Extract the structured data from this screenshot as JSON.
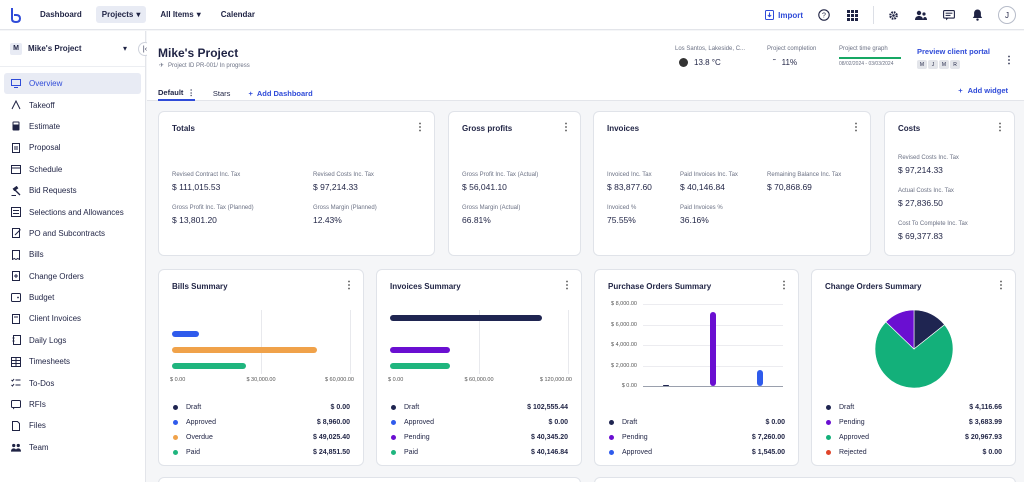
{
  "topnav": {
    "items": [
      {
        "label": "Dashboard"
      },
      {
        "label": "Projects"
      },
      {
        "label": "All Items"
      },
      {
        "label": "Calendar"
      }
    ],
    "import_label": "Import",
    "avatar_initial": "J"
  },
  "sidebar": {
    "project_initial": "M",
    "project_name": "Mike's Project",
    "items": [
      {
        "label": "Overview"
      },
      {
        "label": "Takeoff"
      },
      {
        "label": "Estimate"
      },
      {
        "label": "Proposal"
      },
      {
        "label": "Schedule"
      },
      {
        "label": "Bid Requests"
      },
      {
        "label": "Selections and Allowances"
      },
      {
        "label": "PO and Subcontracts"
      },
      {
        "label": "Bills"
      },
      {
        "label": "Change Orders"
      },
      {
        "label": "Budget"
      },
      {
        "label": "Client Invoices"
      },
      {
        "label": "Daily Logs"
      },
      {
        "label": "Timesheets"
      },
      {
        "label": "To-Dos"
      },
      {
        "label": "RFIs"
      },
      {
        "label": "Files"
      },
      {
        "label": "Team"
      }
    ]
  },
  "header": {
    "title": "Mike's Project",
    "subtitle": "Project ID PR-001/ In progress",
    "location": "Los Santos, Lakeside, C...",
    "temperature": "13.8 °C",
    "completion_label": "Project completion",
    "completion_value": "11%",
    "timegraph_label": "Project time graph",
    "timegraph_dates": "08/02/2024 - 03/03/2024",
    "portal_label": "Preview client portal",
    "portal_avatars": [
      "M",
      "J",
      "M",
      "R"
    ],
    "tabs": [
      {
        "label": "Default"
      },
      {
        "label": "Stars"
      },
      {
        "label": "Add Dashboard"
      }
    ],
    "add_widget": "Add widget"
  },
  "totals": {
    "title": "Totals",
    "metrics": [
      {
        "label": "Revised Contract Inc. Tax",
        "value": "$ 111,015.53"
      },
      {
        "label": "Revised Costs Inc. Tax",
        "value": "$ 97,214.33"
      },
      {
        "label": "Gross Profit Inc. Tax (Planned)",
        "value": "$ 13,801.20"
      },
      {
        "label": "Gross Margin (Planned)",
        "value": "12.43%"
      }
    ]
  },
  "gross_profits": {
    "title": "Gross profits",
    "metrics": [
      {
        "label": "Gross Profit Inc. Tax (Actual)",
        "value": "$ 56,041.10"
      },
      {
        "label": "Gross Margin (Actual)",
        "value": "66.81%"
      }
    ]
  },
  "invoices": {
    "title": "Invoices",
    "metrics": [
      {
        "label": "Invoiced Inc. Tax",
        "value": "$ 83,877.60"
      },
      {
        "label": "Paid Invoices Inc. Tax",
        "value": "$ 40,146.84"
      },
      {
        "label": "Remaining Balance Inc. Tax",
        "value": "$ 70,868.69"
      },
      {
        "label": "Invoiced %",
        "value": "75.55%"
      },
      {
        "label": "Paid Invoices %",
        "value": "36.16%"
      }
    ]
  },
  "costs": {
    "title": "Costs",
    "metrics": [
      {
        "label": "Revised Costs Inc. Tax",
        "value": "$ 97,214.33"
      },
      {
        "label": "Actual Costs Inc. Tax",
        "value": "$ 27,836.50"
      },
      {
        "label": "Cost To Complete Inc. Tax",
        "value": "$ 69,377.83"
      }
    ]
  },
  "bills_summary": {
    "title": "Bills Summary",
    "legend": [
      {
        "label": "Draft",
        "value": "$ 0.00"
      },
      {
        "label": "Approved",
        "value": "$ 8,960.00"
      },
      {
        "label": "Overdue",
        "value": "$ 49,025.40"
      },
      {
        "label": "Paid",
        "value": "$ 24,851.50"
      }
    ]
  },
  "invoices_summary": {
    "title": "Invoices Summary",
    "legend": [
      {
        "label": "Draft",
        "value": "$ 102,555.44"
      },
      {
        "label": "Approved",
        "value": "$ 0.00"
      },
      {
        "label": "Pending",
        "value": "$ 40,345.20"
      },
      {
        "label": "Paid",
        "value": "$ 40,146.84"
      }
    ]
  },
  "po_summary": {
    "title": "Purchase Orders Summary",
    "legend": [
      {
        "label": "Draft",
        "value": "$ 0.00"
      },
      {
        "label": "Pending",
        "value": "$ 7,260.00"
      },
      {
        "label": "Approved",
        "value": "$ 1,545.00"
      }
    ]
  },
  "co_summary": {
    "title": "Change Orders Summary",
    "legend": [
      {
        "label": "Draft",
        "value": "$ 4,116.66"
      },
      {
        "label": "Pending",
        "value": "$ 3,683.99"
      },
      {
        "label": "Approved",
        "value": "$ 20,967.93"
      },
      {
        "label": "Rejected",
        "value": "$ 0.00"
      }
    ]
  },
  "colors": {
    "accent": "#2f4bd8",
    "draft": "#1f2551",
    "approved": "#2f5bec",
    "overdue": "#f0a24a",
    "paid": "#1fb57e",
    "pending": "#6a0fd1",
    "rejected": "#e0452a"
  },
  "chart_data": [
    {
      "type": "bar",
      "orientation": "horizontal",
      "title": "Bills Summary",
      "categories": [
        "Draft",
        "Approved",
        "Overdue",
        "Paid"
      ],
      "values": [
        0,
        8960.0,
        49025.4,
        24851.5
      ],
      "colors": [
        "#1f2551",
        "#2f5bec",
        "#f0a24a",
        "#1fb57e"
      ],
      "xlim": [
        0,
        60000
      ],
      "xticks": [
        "$ 0.00",
        "$ 30,000.00",
        "$ 60,000.00"
      ]
    },
    {
      "type": "bar",
      "orientation": "horizontal",
      "title": "Invoices Summary",
      "categories": [
        "Draft",
        "Approved",
        "Pending",
        "Paid"
      ],
      "values": [
        102555.44,
        0,
        40345.2,
        40146.84
      ],
      "colors": [
        "#1f2551",
        "#2f5bec",
        "#6a0fd1",
        "#1fb57e"
      ],
      "xlim": [
        0,
        120000
      ],
      "xticks": [
        "$ 0.00",
        "$ 60,000.00",
        "$ 120,000.00"
      ]
    },
    {
      "type": "bar",
      "orientation": "vertical",
      "title": "Purchase Orders Summary",
      "categories": [
        "Draft",
        "Pending",
        "Approved"
      ],
      "values": [
        0,
        7260.0,
        1545.0
      ],
      "colors": [
        "#1f2551",
        "#6a0fd1",
        "#2f5bec"
      ],
      "ylim": [
        0,
        8000
      ],
      "yticks": [
        "$ 0.00",
        "$ 2,000.00",
        "$ 4,000.00",
        "$ 6,000.00",
        "$ 8,000.00"
      ]
    },
    {
      "type": "pie",
      "title": "Change Orders Summary",
      "categories": [
        "Draft",
        "Pending",
        "Approved",
        "Rejected"
      ],
      "values": [
        4116.66,
        3683.99,
        20967.93,
        0
      ],
      "colors": [
        "#1f2551",
        "#6a0fd1",
        "#13b07a",
        "#e0452a"
      ]
    }
  ]
}
